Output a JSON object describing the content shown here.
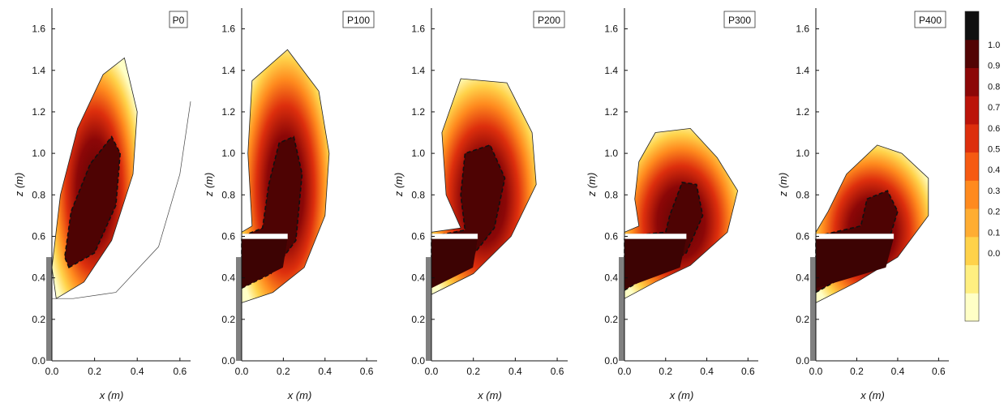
{
  "chart_data": {
    "type": "heatmap",
    "x_axis_label": "x (m)",
    "y_axis_label": "z (m)",
    "xlim": [
      0.0,
      0.65
    ],
    "ylim": [
      0.0,
      1.7
    ],
    "x_ticks": [
      "0.0",
      "0.2",
      "0.4",
      "0.6"
    ],
    "y_ticks": [
      "0.0",
      "0.2",
      "0.4",
      "0.6",
      "0.8",
      "1.0",
      "1.2",
      "1.4",
      "1.6"
    ],
    "colorbar": {
      "range": [
        0.0,
        1.0
      ],
      "labels": [
        "1.0",
        "0.9",
        "0.8",
        "0.7",
        "0.6",
        "0.5",
        "0.4",
        "0.3",
        "0.2",
        "0.1",
        "0.0"
      ],
      "colors": [
        "#ffffc6",
        "#ffef80",
        "#ffd24a",
        "#ffad32",
        "#ff8a1e",
        "#f65a12",
        "#dd2f0d",
        "#bb140a",
        "#8c0707",
        "#520404",
        "#101010"
      ]
    },
    "panels": [
      {
        "name": "P0",
        "plate_z": null,
        "plate_x_end": null,
        "outer": [
          [
            0.02,
            0.3
          ],
          [
            0.15,
            0.38
          ],
          [
            0.28,
            0.58
          ],
          [
            0.38,
            0.9
          ],
          [
            0.4,
            1.2
          ],
          [
            0.34,
            1.46
          ],
          [
            0.24,
            1.38
          ],
          [
            0.12,
            1.12
          ],
          [
            0.04,
            0.8
          ],
          [
            0.0,
            0.45
          ]
        ],
        "core": [
          [
            0.08,
            0.45
          ],
          [
            0.2,
            0.52
          ],
          [
            0.3,
            0.75
          ],
          [
            0.32,
            1.0
          ],
          [
            0.28,
            1.08
          ],
          [
            0.18,
            0.95
          ],
          [
            0.09,
            0.72
          ],
          [
            0.06,
            0.5
          ]
        ],
        "rim": [
          [
            0.0,
            0.3
          ],
          [
            0.1,
            0.3
          ],
          [
            0.3,
            0.33
          ],
          [
            0.5,
            0.55
          ],
          [
            0.6,
            0.9
          ],
          [
            0.65,
            1.25
          ]
        ]
      },
      {
        "name": "P100",
        "plate_z": 0.6,
        "plate_x_end": 0.22,
        "outer": [
          [
            0.0,
            0.28
          ],
          [
            0.15,
            0.33
          ],
          [
            0.3,
            0.45
          ],
          [
            0.4,
            0.7
          ],
          [
            0.42,
            1.0
          ],
          [
            0.37,
            1.3
          ],
          [
            0.22,
            1.5
          ],
          [
            0.05,
            1.35
          ],
          [
            0.03,
            1.0
          ],
          [
            0.05,
            0.65
          ],
          [
            0.0,
            0.62
          ]
        ],
        "core": [
          [
            0.0,
            0.35
          ],
          [
            0.14,
            0.42
          ],
          [
            0.26,
            0.58
          ],
          [
            0.29,
            0.9
          ],
          [
            0.25,
            1.08
          ],
          [
            0.18,
            1.05
          ],
          [
            0.13,
            0.85
          ],
          [
            0.1,
            0.64
          ],
          [
            0.0,
            0.6
          ]
        ],
        "rim": []
      },
      {
        "name": "P200",
        "plate_z": 0.6,
        "plate_x_end": 0.22,
        "outer": [
          [
            0.0,
            0.32
          ],
          [
            0.2,
            0.42
          ],
          [
            0.38,
            0.6
          ],
          [
            0.5,
            0.85
          ],
          [
            0.48,
            1.1
          ],
          [
            0.36,
            1.34
          ],
          [
            0.14,
            1.36
          ],
          [
            0.05,
            1.1
          ],
          [
            0.07,
            0.8
          ],
          [
            0.14,
            0.64
          ],
          [
            0.0,
            0.62
          ]
        ],
        "core": [
          [
            0.0,
            0.36
          ],
          [
            0.16,
            0.46
          ],
          [
            0.3,
            0.64
          ],
          [
            0.35,
            0.88
          ],
          [
            0.28,
            1.04
          ],
          [
            0.16,
            1.0
          ],
          [
            0.14,
            0.8
          ],
          [
            0.16,
            0.63
          ],
          [
            0.0,
            0.6
          ]
        ],
        "rim": []
      },
      {
        "name": "P300",
        "plate_z": 0.6,
        "plate_x_end": 0.3,
        "outer": [
          [
            0.0,
            0.3
          ],
          [
            0.15,
            0.38
          ],
          [
            0.32,
            0.46
          ],
          [
            0.5,
            0.62
          ],
          [
            0.55,
            0.82
          ],
          [
            0.45,
            0.98
          ],
          [
            0.32,
            1.12
          ],
          [
            0.15,
            1.1
          ],
          [
            0.07,
            0.96
          ],
          [
            0.05,
            0.78
          ],
          [
            0.07,
            0.65
          ],
          [
            0.0,
            0.62
          ]
        ],
        "core": [
          [
            0.0,
            0.34
          ],
          [
            0.15,
            0.43
          ],
          [
            0.3,
            0.52
          ],
          [
            0.38,
            0.7
          ],
          [
            0.35,
            0.85
          ],
          [
            0.28,
            0.86
          ],
          [
            0.22,
            0.7
          ],
          [
            0.2,
            0.62
          ],
          [
            0.0,
            0.6
          ]
        ],
        "rim": []
      },
      {
        "name": "P400",
        "plate_z": 0.6,
        "plate_x_end": 0.38,
        "outer": [
          [
            0.0,
            0.28
          ],
          [
            0.2,
            0.38
          ],
          [
            0.4,
            0.5
          ],
          [
            0.55,
            0.7
          ],
          [
            0.55,
            0.88
          ],
          [
            0.42,
            1.0
          ],
          [
            0.3,
            1.04
          ],
          [
            0.15,
            0.9
          ],
          [
            0.06,
            0.72
          ],
          [
            0.0,
            0.62
          ]
        ],
        "core": [
          [
            0.0,
            0.33
          ],
          [
            0.18,
            0.43
          ],
          [
            0.35,
            0.56
          ],
          [
            0.4,
            0.72
          ],
          [
            0.35,
            0.82
          ],
          [
            0.25,
            0.78
          ],
          [
            0.22,
            0.65
          ],
          [
            0.0,
            0.6
          ]
        ],
        "rim": []
      }
    ]
  }
}
